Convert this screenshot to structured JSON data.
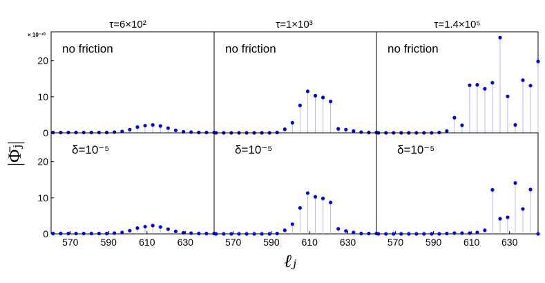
{
  "chart_data": {
    "type": "scatter",
    "style": "stem",
    "marker_color": "#0000ee",
    "stem_color": "#b8b8ee",
    "multiplier_label": "× 10⁻¹⁰",
    "ylabel": "|Φ̄ⱼ|",
    "xlabel": "ℓⱼ",
    "xlim": [
      560,
      645
    ],
    "ylim": [
      0,
      28
    ],
    "xticks": [
      570,
      590,
      610,
      630
    ],
    "yticks": [
      0,
      10,
      20
    ],
    "x": [
      561,
      565,
      569,
      573,
      577,
      581,
      585,
      589,
      593,
      597,
      601,
      605,
      609,
      613,
      617,
      621,
      625,
      629,
      633,
      637,
      641,
      645
    ],
    "columns": [
      {
        "tau_label": "τ=6×10²"
      },
      {
        "tau_label": "τ=1×10³"
      },
      {
        "tau_label": "τ=1.4×10⁵"
      }
    ],
    "rows": [
      {
        "label": "no friction"
      },
      {
        "label": "δ=10⁻⁵"
      }
    ],
    "panels": [
      {
        "row": 0,
        "col": 0,
        "values": [
          0.1,
          0.1,
          0.1,
          0.1,
          0.1,
          0.1,
          0.1,
          0.1,
          0.2,
          0.4,
          0.9,
          1.6,
          2.0,
          2.2,
          1.9,
          1.3,
          0.7,
          0.3,
          0.2,
          0.1,
          0.1,
          0.1
        ]
      },
      {
        "row": 0,
        "col": 1,
        "values": [
          0,
          0,
          0,
          0,
          0,
          0,
          0,
          0,
          0.1,
          1.0,
          2.8,
          7.6,
          11.5,
          10.3,
          9.8,
          8.7,
          1.1,
          0.9,
          0.5,
          0.2,
          0.1,
          0.1
        ]
      },
      {
        "row": 0,
        "col": 2,
        "values": [
          0,
          0,
          0,
          0,
          0,
          0,
          0,
          0,
          0.1,
          0.5,
          4.2,
          2.1,
          13.2,
          13.3,
          12.2,
          13.9,
          26.4,
          10.1,
          2.2,
          14.6,
          13.1,
          19.8
        ]
      },
      {
        "row": 1,
        "col": 0,
        "values": [
          0.1,
          0.1,
          0.1,
          0.1,
          0.1,
          0.1,
          0.1,
          0.1,
          0.2,
          0.4,
          0.9,
          1.6,
          2.0,
          2.3,
          1.9,
          1.3,
          0.7,
          0.3,
          0.2,
          0.1,
          0.1,
          0.1
        ]
      },
      {
        "row": 1,
        "col": 1,
        "values": [
          0,
          0,
          0,
          0,
          0,
          0,
          0,
          0,
          0.1,
          1.0,
          2.7,
          7.2,
          11.3,
          10.3,
          9.8,
          8.7,
          1.4,
          0.8,
          0.4,
          0.1,
          0.1,
          0.1
        ]
      },
      {
        "row": 1,
        "col": 2,
        "values": [
          0,
          0,
          0,
          0,
          0,
          0,
          0,
          0,
          0,
          0.1,
          0.2,
          0.2,
          0.2,
          0.4,
          1.0,
          12.2,
          4.2,
          4.6,
          14.1,
          6.9,
          12.3,
          0
        ]
      }
    ]
  }
}
